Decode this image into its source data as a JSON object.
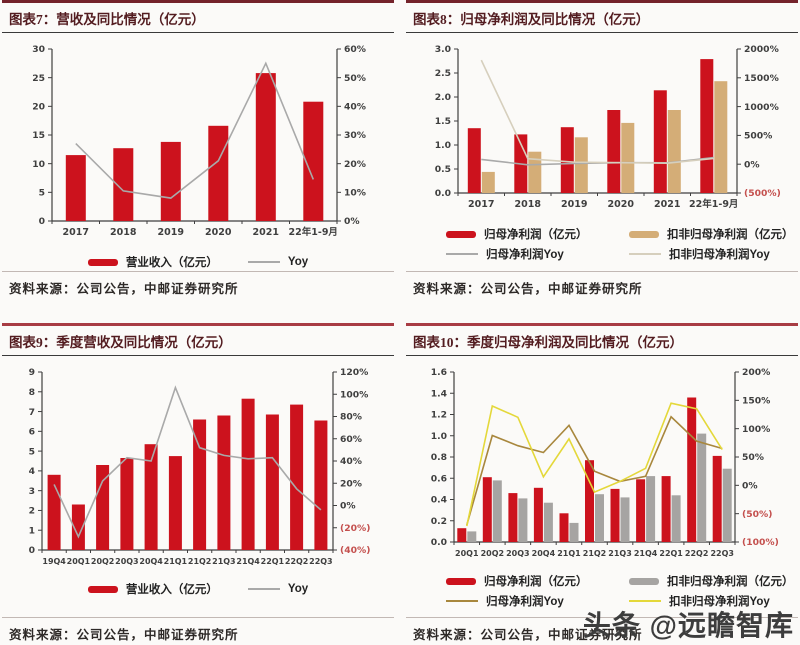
{
  "watermark": "头条 @远瞻智库",
  "source_note": "资料来源：公司公告，中邮证券研究所",
  "colors": {
    "bar_red": "#cc121d",
    "bar_tan": "#d4ad77",
    "bar_gray": "#a6a4a2",
    "line_gray": "#a9a9a9",
    "line_beige": "#d6cfbd",
    "line_gold": "#a8873d",
    "line_yellow": "#e4d83a",
    "axis": "#3f3f3f",
    "negative_label": "#c4504e",
    "header_maroon": "#74232b",
    "divider_red": "#a83c44"
  },
  "chart_data": [
    {
      "id": "fig7",
      "type": "bar+line",
      "title": "图表7：营收及同比情况（亿元）",
      "categories": [
        "2017",
        "2018",
        "2019",
        "2020",
        "2021",
        "22年1-9月"
      ],
      "series": [
        {
          "name": "营业收入（亿元）",
          "type": "bar",
          "axis": "left",
          "color": "#cc121d",
          "values": [
            11.5,
            12.7,
            13.8,
            16.6,
            25.8,
            20.8
          ]
        },
        {
          "name": "Yoy",
          "type": "line",
          "axis": "right",
          "color": "#a9a9a9",
          "values": [
            27,
            10.5,
            8,
            21,
            55,
            14.5
          ]
        }
      ],
      "left_axis": {
        "min": 0,
        "max": 30,
        "labels": [
          "0",
          "5",
          "10",
          "15",
          "20",
          "25",
          "30"
        ]
      },
      "right_axis": {
        "min": 0,
        "max": 60,
        "labels": [
          "0%",
          "10%",
          "20%",
          "30%",
          "40%",
          "50%",
          "60%"
        ]
      },
      "grid": false,
      "legend_position": "bottom"
    },
    {
      "id": "fig8",
      "type": "bar+line",
      "title": "图表8：归母净利润及同比情况（亿元）",
      "categories": [
        "2017",
        "2018",
        "2019",
        "2020",
        "2021",
        "22年1-9月"
      ],
      "series": [
        {
          "name": "归母净利润（亿元）",
          "type": "bar",
          "axis": "left",
          "color": "#cc121d",
          "values": [
            1.35,
            1.22,
            1.37,
            1.73,
            2.14,
            2.79
          ]
        },
        {
          "name": "扣非归母净利润（亿元）",
          "type": "bar",
          "axis": "left",
          "color": "#d4ad77",
          "values": [
            0.44,
            0.86,
            1.16,
            1.46,
            1.73,
            2.33
          ]
        },
        {
          "name": "归母净利润Yoy",
          "type": "line",
          "axis": "right",
          "color": "#a9a9a9",
          "values": [
            83,
            -10,
            12,
            26,
            24,
            115
          ]
        },
        {
          "name": "扣非归母净利润Yoy",
          "type": "line",
          "axis": "right",
          "color": "#d6cfbd",
          "values": [
            1808,
            95,
            35,
            26,
            18,
            100
          ]
        }
      ],
      "left_axis": {
        "min": 0,
        "max": 3,
        "labels": [
          "0.0",
          "0.5",
          "1.0",
          "1.5",
          "2.0",
          "2.5",
          "3.0"
        ]
      },
      "right_axis": {
        "min": -500,
        "max": 2000,
        "labels": [
          "(500%)",
          "0%",
          "500%",
          "1000%",
          "1500%",
          "2000%"
        ]
      },
      "grid": false,
      "legend_position": "bottom"
    },
    {
      "id": "fig9",
      "type": "bar+line",
      "title": "图表9：季度营收及同比情况（亿元）",
      "categories": [
        "19Q4",
        "20Q1",
        "20Q2",
        "20Q3",
        "20Q4",
        "21Q1",
        "21Q2",
        "21Q3",
        "21Q4",
        "22Q1",
        "22Q2",
        "22Q3"
      ],
      "series": [
        {
          "name": "营业收入（亿元）",
          "type": "bar",
          "axis": "left",
          "color": "#cc121d",
          "values": [
            3.8,
            2.3,
            4.3,
            4.65,
            5.35,
            4.75,
            6.6,
            6.8,
            7.65,
            6.85,
            7.35,
            6.55
          ]
        },
        {
          "name": "Yoy",
          "type": "line",
          "axis": "right",
          "color": "#a9a9a9",
          "values": [
            19,
            -28,
            22,
            43,
            40,
            106,
            52,
            45,
            42,
            43,
            15,
            -4
          ]
        }
      ],
      "left_axis": {
        "min": 0,
        "max": 9,
        "labels": [
          "0",
          "1",
          "2",
          "3",
          "4",
          "5",
          "6",
          "7",
          "8",
          "9"
        ]
      },
      "right_axis": {
        "min": -40,
        "max": 120,
        "labels": [
          "(40%)",
          "(20%)",
          "0%",
          "20%",
          "40%",
          "60%",
          "80%",
          "100%",
          "120%"
        ]
      },
      "grid": false,
      "legend_position": "bottom"
    },
    {
      "id": "fig10",
      "type": "bar+line",
      "title": "图表10：季度归母净利润及同比情况（亿元）",
      "categories": [
        "20Q1",
        "20Q2",
        "20Q3",
        "20Q4",
        "21Q1",
        "21Q2",
        "21Q3",
        "21Q4",
        "22Q1",
        "22Q2",
        "22Q3"
      ],
      "series": [
        {
          "name": "归母净利润（亿元）",
          "type": "bar",
          "axis": "left",
          "color": "#cc121d",
          "values": [
            0.13,
            0.61,
            0.46,
            0.51,
            0.27,
            0.77,
            0.5,
            0.59,
            0.62,
            1.36,
            0.81
          ]
        },
        {
          "name": "扣非归母净利润（亿元）",
          "type": "bar",
          "axis": "left",
          "color": "#a6a4a2",
          "values": [
            0.1,
            0.58,
            0.41,
            0.37,
            0.18,
            0.45,
            0.42,
            0.62,
            0.44,
            1.02,
            0.69
          ]
        },
        {
          "name": "归母净利润Yoy",
          "type": "line",
          "axis": "right",
          "color": "#a8873d",
          "values": [
            -70,
            88,
            70,
            58,
            106,
            25,
            7,
            16,
            121,
            78,
            65
          ]
        },
        {
          "name": "扣非归母净利润Yoy",
          "type": "line",
          "axis": "right",
          "color": "#e4d83a",
          "values": [
            -72,
            140,
            120,
            15,
            82,
            -12,
            7,
            30,
            145,
            135,
            63
          ]
        }
      ],
      "left_axis": {
        "min": 0,
        "max": 1.6,
        "labels": [
          "0.0",
          "0.2",
          "0.4",
          "0.6",
          "0.8",
          "1.0",
          "1.2",
          "1.4",
          "1.6"
        ]
      },
      "right_axis": {
        "min": -100,
        "max": 200,
        "labels": [
          "(100%)",
          "(50%)",
          "0%",
          "50%",
          "100%",
          "150%",
          "200%"
        ]
      },
      "grid": false,
      "legend_position": "bottom"
    }
  ]
}
